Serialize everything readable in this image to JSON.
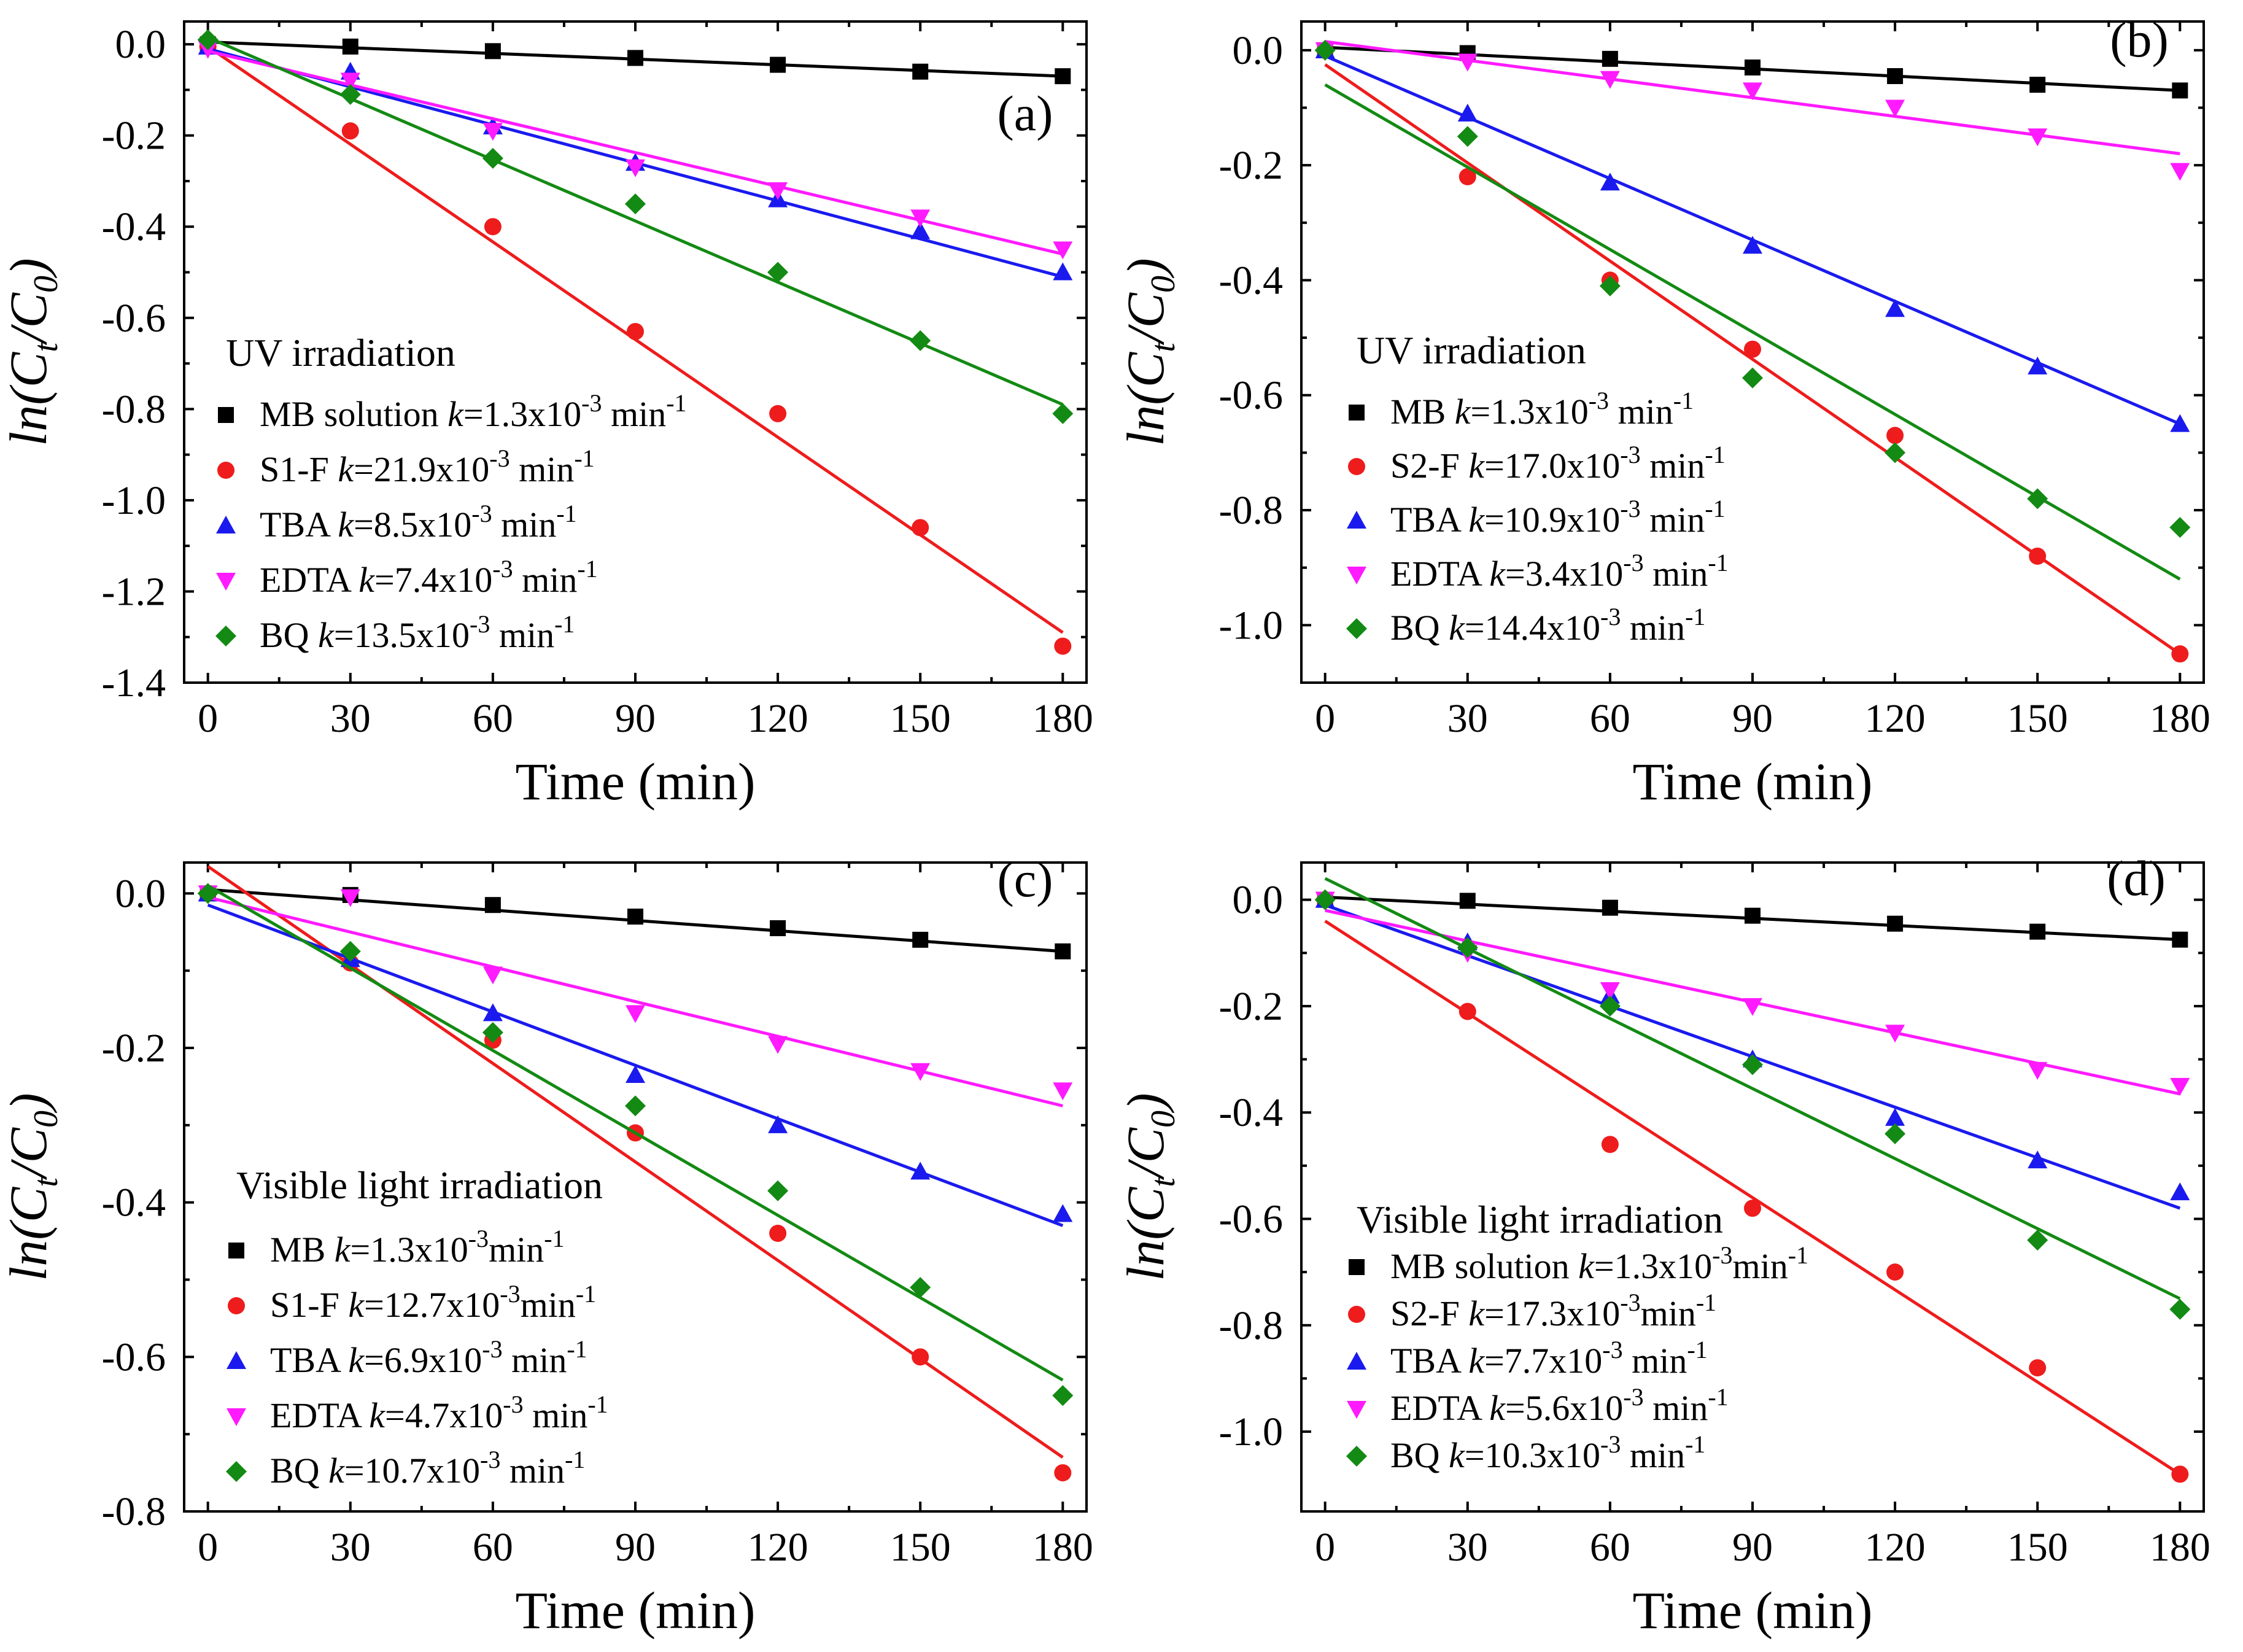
{
  "colors": {
    "black": "#000000",
    "red": "#ee1c1c",
    "blue": "#1a1aee",
    "magenta": "#ff1aff",
    "green": "#138a13"
  },
  "chart_data": [
    {
      "panel": "(a)",
      "type": "scatter",
      "xlabel": "Time (min)",
      "ylabel": "ln(Ct/C0)",
      "xlim": [
        -5,
        185
      ],
      "ylim": [
        -1.4,
        0.05
      ],
      "xticks": [
        0,
        30,
        60,
        90,
        120,
        150,
        180
      ],
      "yticks": [
        0.0,
        -0.2,
        -0.4,
        -0.6,
        -0.8,
        -1.0,
        -1.2,
        -1.4
      ],
      "condition": "UV irradiation",
      "x": [
        0,
        30,
        60,
        90,
        120,
        150,
        180
      ],
      "series": [
        {
          "name": "MB solution",
          "k_text": "k=1.3x10-3 min-1",
          "marker": "square",
          "color": "#000000",
          "values": [
            0.0,
            -0.005,
            -0.015,
            -0.03,
            -0.045,
            -0.06,
            -0.07
          ],
          "fit": [
            0.005,
            -0.07
          ]
        },
        {
          "name": "S1-F",
          "k_text": "k=21.9x10-3 min-1",
          "marker": "circle",
          "color": "#ee1c1c",
          "values": [
            -0.005,
            -0.19,
            -0.4,
            -0.63,
            -0.81,
            -1.06,
            -1.32
          ],
          "fit": [
            -0.005,
            -1.29
          ]
        },
        {
          "name": "TBA",
          "k_text": "k=8.5x10-3 min-1",
          "marker": "triangle-up",
          "color": "#1a1aee",
          "values": [
            -0.005,
            -0.06,
            -0.18,
            -0.26,
            -0.34,
            -0.41,
            -0.5
          ],
          "fit": [
            -0.01,
            -0.51
          ]
        },
        {
          "name": "EDTA",
          "k_text": "k=7.4x10-3 min-1",
          "marker": "triangle-down",
          "color": "#ff1aff",
          "values": [
            -0.01,
            -0.08,
            -0.19,
            -0.27,
            -0.32,
            -0.38,
            -0.45
          ],
          "fit": [
            -0.015,
            -0.46
          ]
        },
        {
          "name": "BQ",
          "k_text": "k=13.5x10-3 min-1",
          "marker": "diamond",
          "color": "#138a13",
          "values": [
            0.01,
            -0.11,
            -0.25,
            -0.35,
            -0.5,
            -0.65,
            -0.81
          ],
          "fit": [
            0.015,
            -0.79
          ]
        }
      ]
    },
    {
      "panel": "(b)",
      "type": "scatter",
      "xlabel": "Time (min)",
      "ylabel": "ln(Ct/C0)",
      "xlim": [
        -5,
        185
      ],
      "ylim": [
        -1.1,
        0.05
      ],
      "xticks": [
        0,
        30,
        60,
        90,
        120,
        150,
        180
      ],
      "yticks": [
        0.0,
        -0.2,
        -0.4,
        -0.6,
        -0.8,
        -1.0
      ],
      "condition": "UV irradiation",
      "x": [
        0,
        30,
        60,
        90,
        120,
        150,
        180
      ],
      "series": [
        {
          "name": "MB",
          "k_text": "k=1.3x10-3 min-1",
          "marker": "square",
          "color": "#000000",
          "values": [
            0.0,
            -0.005,
            -0.015,
            -0.03,
            -0.045,
            -0.06,
            -0.07
          ],
          "fit": [
            0.005,
            -0.07
          ]
        },
        {
          "name": "S2-F",
          "k_text": "k=17.0x10-3 min-1",
          "marker": "circle",
          "color": "#ee1c1c",
          "values": [
            0.0,
            -0.22,
            -0.4,
            -0.52,
            -0.67,
            -0.88,
            -1.05
          ],
          "fit": [
            -0.025,
            -1.05
          ]
        },
        {
          "name": "TBA",
          "k_text": "k=10.9x10-3 min-1",
          "marker": "triangle-up",
          "color": "#1a1aee",
          "values": [
            0.0,
            -0.11,
            -0.23,
            -0.34,
            -0.45,
            -0.55,
            -0.65
          ],
          "fit": [
            -0.01,
            -0.65
          ]
        },
        {
          "name": "EDTA",
          "k_text": "k=3.4x10-3 min-1",
          "marker": "triangle-down",
          "color": "#ff1aff",
          "values": [
            0.0,
            -0.02,
            -0.05,
            -0.07,
            -0.1,
            -0.15,
            -0.21
          ],
          "fit": [
            0.015,
            -0.18
          ]
        },
        {
          "name": "BQ",
          "k_text": "k=14.4x10-3 min-1",
          "marker": "diamond",
          "color": "#138a13",
          "values": [
            0.0,
            -0.15,
            -0.41,
            -0.57,
            -0.7,
            -0.78,
            -0.83
          ],
          "fit": [
            -0.06,
            -0.92
          ]
        }
      ]
    },
    {
      "panel": "(c)",
      "type": "scatter",
      "xlabel": "Time (min)",
      "ylabel": "ln(Ct/C0)",
      "xlim": [
        -5,
        185
      ],
      "ylim": [
        -0.8,
        0.04
      ],
      "xticks": [
        0,
        30,
        60,
        90,
        120,
        150,
        180
      ],
      "yticks": [
        0.0,
        -0.2,
        -0.4,
        -0.6,
        -0.8
      ],
      "condition": "Visible light irradiation",
      "x": [
        0,
        30,
        60,
        90,
        120,
        150,
        180
      ],
      "series": [
        {
          "name": "MB",
          "k_text": "k=1.3x10-3min-1",
          "marker": "square",
          "color": "#000000",
          "values": [
            0.0,
            -0.002,
            -0.015,
            -0.03,
            -0.045,
            -0.06,
            -0.075
          ],
          "fit": [
            0.005,
            -0.075
          ]
        },
        {
          "name": "S1-F",
          "k_text": "k=12.7x10-3min-1",
          "marker": "circle",
          "color": "#ee1c1c",
          "values": [
            0.0,
            -0.09,
            -0.19,
            -0.31,
            -0.44,
            -0.6,
            -0.75
          ],
          "fit": [
            0.035,
            -0.73
          ]
        },
        {
          "name": "TBA",
          "k_text": "k=6.9x10-3 min-1",
          "marker": "triangle-up",
          "color": "#1a1aee",
          "values": [
            0.0,
            -0.085,
            -0.155,
            -0.235,
            -0.3,
            -0.36,
            -0.415
          ],
          "fit": [
            -0.015,
            -0.43
          ]
        },
        {
          "name": "EDTA",
          "k_text": "k=4.7x10-3 min-1",
          "marker": "triangle-down",
          "color": "#ff1aff",
          "values": [
            0.0,
            -0.005,
            -0.105,
            -0.155,
            -0.195,
            -0.23,
            -0.255
          ],
          "fit": [
            -0.005,
            -0.275
          ]
        },
        {
          "name": "BQ",
          "k_text": "k=10.7x10-3 min-1",
          "marker": "diamond",
          "color": "#138a13",
          "values": [
            0.0,
            -0.075,
            -0.18,
            -0.275,
            -0.385,
            -0.51,
            -0.65
          ],
          "fit": [
            0.01,
            -0.63
          ]
        }
      ]
    },
    {
      "panel": "(d)",
      "type": "scatter",
      "xlabel": "Time (min)",
      "ylabel": "ln(Ct/C0)",
      "xlim": [
        -5,
        185
      ],
      "ylim": [
        -1.15,
        0.07
      ],
      "xticks": [
        0,
        30,
        60,
        90,
        120,
        150,
        180
      ],
      "yticks": [
        0.0,
        -0.2,
        -0.4,
        -0.6,
        -0.8,
        -1.0
      ],
      "condition": "Visible light irradiation",
      "x": [
        0,
        30,
        60,
        90,
        120,
        150,
        180
      ],
      "series": [
        {
          "name": "MB solution",
          "k_text": "k=1.3x10-3min-1",
          "marker": "square",
          "color": "#000000",
          "values": [
            0.0,
            -0.002,
            -0.015,
            -0.03,
            -0.045,
            -0.06,
            -0.075
          ],
          "fit": [
            0.005,
            -0.075
          ]
        },
        {
          "name": "S2-F",
          "k_text": "k=17.3x10-3min-1",
          "marker": "circle",
          "color": "#ee1c1c",
          "values": [
            0.0,
            -0.21,
            -0.46,
            -0.58,
            -0.7,
            -0.88,
            -1.08
          ],
          "fit": [
            -0.04,
            -1.08
          ]
        },
        {
          "name": "TBA",
          "k_text": "k=7.7x10-3 min-1",
          "marker": "triangle-up",
          "color": "#1a1aee",
          "values": [
            0.0,
            -0.08,
            -0.18,
            -0.3,
            -0.41,
            -0.49,
            -0.55
          ],
          "fit": [
            -0.01,
            -0.58
          ]
        },
        {
          "name": "EDTA",
          "k_text": "k=5.6x10-3 min-1",
          "marker": "triangle-down",
          "color": "#ff1aff",
          "values": [
            0.0,
            -0.1,
            -0.17,
            -0.2,
            -0.25,
            -0.32,
            -0.35
          ],
          "fit": [
            -0.02,
            -0.365
          ]
        },
        {
          "name": "BQ",
          "k_text": "k=10.3x10-3 min-1",
          "marker": "diamond",
          "color": "#138a13",
          "values": [
            0.0,
            -0.09,
            -0.2,
            -0.31,
            -0.44,
            -0.64,
            -0.77
          ],
          "fit": [
            0.04,
            -0.75
          ]
        }
      ]
    }
  ]
}
